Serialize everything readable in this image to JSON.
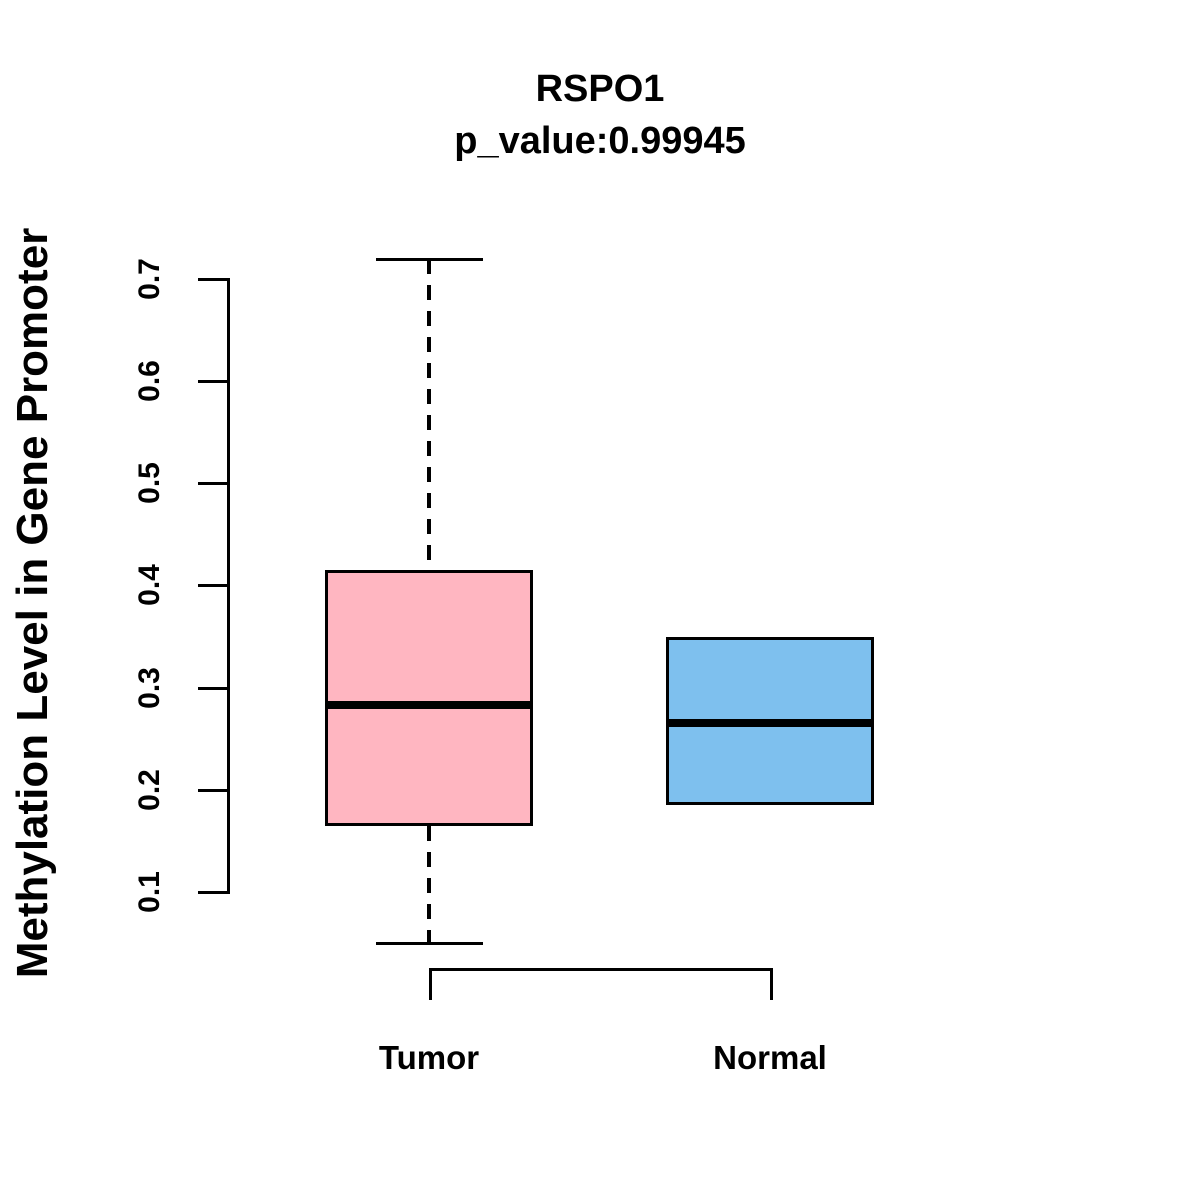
{
  "chart_data": {
    "type": "boxplot",
    "title": "RSPO1",
    "subtitle": "p_value:0.99945",
    "p_value": 0.99945,
    "ylabel": "Methylation Level in Gene Promoter",
    "xlabel": "",
    "categories": [
      "Tumor",
      "Normal"
    ],
    "yticks": [
      0.1,
      0.2,
      0.3,
      0.4,
      0.5,
      0.6,
      0.7
    ],
    "ylim": [
      0.04,
      0.73
    ],
    "grid": false,
    "legend": "none",
    "boxes": [
      {
        "name": "Tumor",
        "color": "#FFB6C1",
        "whisker_low": 0.05,
        "q1": 0.165,
        "median": 0.283,
        "q3": 0.415,
        "whisker_high": 0.72,
        "whisker_style": "dashed"
      },
      {
        "name": "Normal",
        "color": "#7EC0EE",
        "whisker_low": 0.185,
        "q1": 0.185,
        "median": 0.265,
        "q3": 0.35,
        "whisker_high": 0.35,
        "whisker_style": "none"
      }
    ],
    "comparison_bracket": {
      "from": "Tumor",
      "to": "Normal"
    },
    "colors": {
      "axis": "#000000",
      "median": "#000000",
      "background": "#FFFFFF"
    }
  }
}
